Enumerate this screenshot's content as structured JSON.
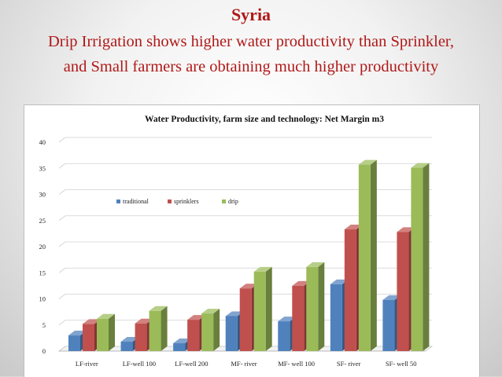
{
  "slide": {
    "title": "Syria",
    "subtitle_line1": "Drip Irrigation shows higher water productivity than Sprinkler,",
    "subtitle_line2": "and Small farmers are obtaining much higher productivity"
  },
  "chart_data": {
    "type": "bar",
    "title": "Water Productivity, farm size  and technology: Net Margin m3",
    "categories": [
      "LF-river",
      "LF-well 100",
      "LF-well 200",
      "MF- river",
      "MF- well 100",
      "SF- river",
      "SF- well 50"
    ],
    "series": [
      {
        "name": "traditional",
        "values": [
          3,
          1.8,
          1.5,
          6.7,
          5.7,
          12.8,
          9.8
        ],
        "color": "#4f81bd"
      },
      {
        "name": "sprinklers",
        "values": [
          5.2,
          5.3,
          6,
          12,
          12.5,
          23.3,
          22.8
        ],
        "color": "#c0504d"
      },
      {
        "name": "drip",
        "values": [
          6.2,
          7.7,
          7.2,
          15.2,
          16.1,
          35.7,
          35.1
        ],
        "color": "#9bbb59"
      }
    ],
    "yticks": [
      "0",
      "5",
      "10",
      "15",
      "20",
      "25",
      "30",
      "35",
      "40"
    ],
    "ylim": [
      0,
      40
    ],
    "grid": true,
    "legend_position": "top-left inside plot",
    "xlabel": "",
    "ylabel": ""
  }
}
